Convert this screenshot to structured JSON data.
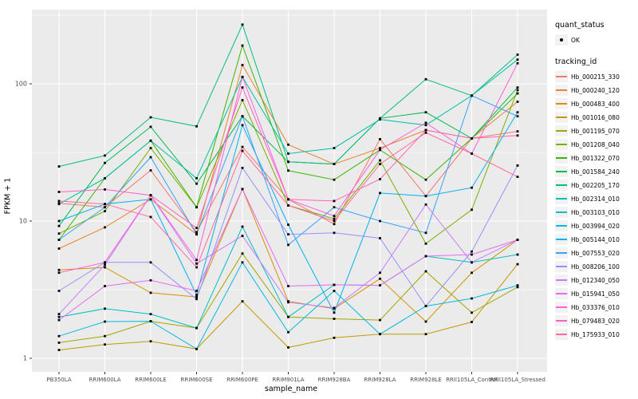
{
  "figure": {
    "panel_background": "#EBEBEB",
    "grid_color": "#FFFFFF",
    "tick_color": "#333333",
    "axis_text_color": "#4D4D4D",
    "point_color": "#000000",
    "x_axis_title": "sample_name",
    "y_axis_title": "FPKM + 1"
  },
  "legend": {
    "quant_status_title": "quant_status",
    "quant_status_items": [
      {
        "label": "OK",
        "symbol": "point"
      }
    ],
    "tracking_id_title": "tracking_id",
    "key_background": "#F2F2F2"
  },
  "chart_data": {
    "type": "line",
    "title": "",
    "xlabel": "sample_name",
    "ylabel": "FPKM + 1",
    "y_scale": "log10",
    "ylim": [
      0.92,
      330
    ],
    "y_major_ticks": [
      1,
      10,
      100
    ],
    "y_minor_ticks": [
      3.162,
      31.62,
      316.2
    ],
    "grid": true,
    "legend_position": "right",
    "marker": "small-black-square",
    "categories": [
      "PB350LA",
      "RRIM600LA",
      "RRIM600LE",
      "RRIM600SE",
      "RRIM600PE",
      "RRIM901LA",
      "RRIM928BA",
      "RRIM928LA",
      "RRIM928LE",
      "RRII105LA_Control",
      "RRII105LA_Stressed"
    ],
    "series": [
      {
        "name": "Hb_000215_330",
        "color": "#F8766D",
        "values": [
          13.5,
          12.6,
          23.4,
          8.3,
          34.7,
          14.4,
          9.5,
          39.5,
          15.2,
          40,
          45
        ]
      },
      {
        "name": "Hb_000240_120",
        "color": "#EA8331",
        "values": [
          6.3,
          9.0,
          14.4,
          8.0,
          137,
          36,
          26,
          34,
          46,
          40,
          74
        ]
      },
      {
        "name": "Hb_000483_400",
        "color": "#D89000",
        "values": [
          4.4,
          4.6,
          3.0,
          2.8,
          17.1,
          2.6,
          2.3,
          3.8,
          1.85,
          4.2,
          7.3
        ]
      },
      {
        "name": "Hb_001016_080",
        "color": "#C09B00",
        "values": [
          1.15,
          1.26,
          1.33,
          1.17,
          2.6,
          1.2,
          1.41,
          1.5,
          1.5,
          1.84,
          4.85
        ]
      },
      {
        "name": "Hb_001195_070",
        "color": "#A3A500",
        "values": [
          1.3,
          1.45,
          1.86,
          1.66,
          5.8,
          2.0,
          1.94,
          1.9,
          4.3,
          2.15,
          3.3
        ]
      },
      {
        "name": "Hb_001208_040",
        "color": "#7CAE00",
        "values": [
          8.1,
          11.8,
          34,
          12.6,
          76,
          13,
          10.4,
          27.7,
          6.85,
          12.1,
          90
        ]
      },
      {
        "name": "Hb_001322_070",
        "color": "#39B600",
        "values": [
          7.3,
          20.5,
          38.5,
          12.6,
          190,
          23.3,
          20,
          33,
          20,
          40,
          85
        ]
      },
      {
        "name": "Hb_001584_240",
        "color": "#00BB4E",
        "values": [
          9.2,
          26.5,
          48.6,
          18.7,
          58,
          27,
          26,
          56,
          62,
          40,
          94
        ]
      },
      {
        "name": "Hb_002205_170",
        "color": "#00BF7D",
        "values": [
          25,
          30,
          57,
          49,
          270,
          27,
          26,
          56,
          108,
          82,
          163
        ]
      },
      {
        "name": "Hb_002314_010",
        "color": "#00C1A3",
        "values": [
          13.3,
          20.5,
          38.5,
          20.5,
          112,
          31,
          34,
          55,
          50,
          82,
          150
        ]
      },
      {
        "name": "Hb_003103_010",
        "color": "#00BFC4",
        "values": [
          2.0,
          2.3,
          2.1,
          1.66,
          9.1,
          2.0,
          3.43,
          3.4,
          5.55,
          5.0,
          5.7
        ]
      },
      {
        "name": "Hb_003994_020",
        "color": "#00BAE0",
        "values": [
          1.45,
          1.85,
          1.86,
          1.17,
          5.0,
          1.55,
          3.1,
          1.5,
          2.4,
          2.73,
          3.4
        ]
      },
      {
        "name": "Hb_005144_010",
        "color": "#00B0F6",
        "values": [
          10,
          13.3,
          14.4,
          2.9,
          50,
          9.4,
          2.15,
          16,
          15.2,
          17.5,
          62
        ]
      },
      {
        "name": "Hb_007553_020",
        "color": "#35A2FF",
        "values": [
          7.3,
          12.6,
          29.2,
          8.0,
          58,
          6.7,
          12.6,
          10,
          8.2,
          82,
          58
        ]
      },
      {
        "name": "Hb_008206_100",
        "color": "#9590FF",
        "values": [
          3.1,
          5.0,
          5.0,
          2.7,
          24.4,
          8.0,
          8.2,
          7.5,
          2.4,
          6.0,
          25.4
        ]
      },
      {
        "name": "Hb_012340_050",
        "color": "#C77CFF",
        "values": [
          2.1,
          4.8,
          15.4,
          4.9,
          7.8,
          2.56,
          2.33,
          4.2,
          13.2,
          5.0,
          7.3
        ]
      },
      {
        "name": "Hb_015941_050",
        "color": "#E76BF3",
        "values": [
          1.9,
          3.36,
          3.7,
          3.1,
          17.1,
          3.36,
          3.43,
          3.4,
          5.55,
          5.7,
          7.3
        ]
      },
      {
        "name": "Hb_033376_010",
        "color": "#FA62DB",
        "values": [
          4.2,
          5.0,
          15.4,
          5.2,
          112,
          14.4,
          10.9,
          33,
          52,
          31,
          141
        ]
      },
      {
        "name": "Hb_079483_020",
        "color": "#FF62BC",
        "values": [
          16.3,
          17,
          15.4,
          8.9,
          94,
          14.4,
          14,
          20.2,
          46,
          40,
          42
        ]
      },
      {
        "name": "Hb_175933_010",
        "color": "#FF6A98",
        "values": [
          14,
          13.3,
          10.7,
          4.6,
          32.5,
          13,
          10,
          26,
          44,
          31,
          21
        ]
      }
    ]
  }
}
